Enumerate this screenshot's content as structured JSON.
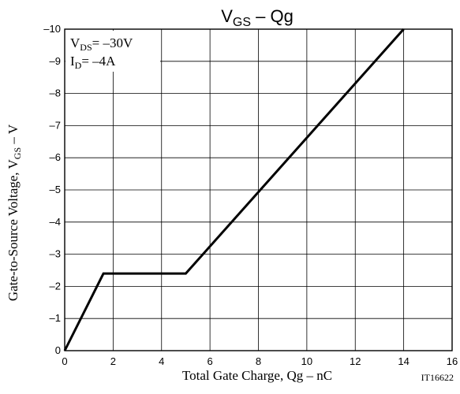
{
  "chart_data": {
    "type": "line",
    "title": {
      "main": "V",
      "sub": "GS",
      "rest": " – Qg"
    },
    "xlabel": "Total Gate Charge, Qg  –  nC",
    "ylabel": {
      "main": "Gate-to-Source Voltage, V",
      "sub": "GS",
      "rest": "  –  V"
    },
    "xlim": [
      0,
      16
    ],
    "ylim": [
      0,
      -10
    ],
    "x_ticks": [
      0,
      2,
      4,
      6,
      8,
      10,
      12,
      14,
      16
    ],
    "x_tick_labels": [
      "0",
      "2",
      "4",
      "6",
      "8",
      "10",
      "12",
      "14",
      "16"
    ],
    "y_ticks": [
      0,
      -1,
      -2,
      -3,
      -4,
      -5,
      -6,
      -7,
      -8,
      -9,
      -10
    ],
    "y_tick_labels": [
      "0",
      "–1",
      "–2",
      "–3",
      "–4",
      "–5",
      "–6",
      "–7",
      "–8",
      "–9",
      "–10"
    ],
    "grid": true,
    "series": [
      {
        "x": [
          0,
          1.6,
          5.0,
          14.0
        ],
        "y": [
          0,
          -2.4,
          -2.4,
          -10
        ]
      }
    ],
    "annotations": [
      {
        "main": "V",
        "sub": "DS",
        "rest": "= –30V"
      },
      {
        "main": "I",
        "sub": "D",
        "rest": "= –4A"
      }
    ],
    "figure_code": "IT16622"
  }
}
